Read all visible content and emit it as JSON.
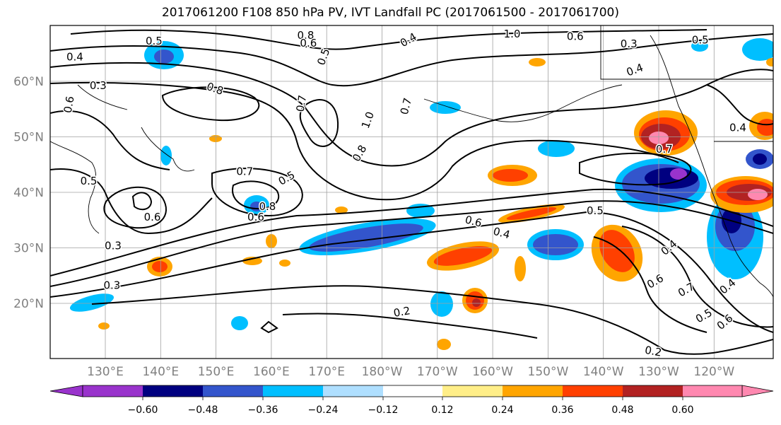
{
  "title": "2017061200 F108 850 hPa PV, IVT Landfall PC (2017061500 - 2017061700)",
  "map": {
    "lon_labels": [
      "130°E",
      "140°E",
      "150°E",
      "160°E",
      "170°E",
      "180°W",
      "170°W",
      "160°W",
      "150°W",
      "140°W",
      "130°W",
      "120°W"
    ],
    "lat_labels": [
      "60°N",
      "50°N",
      "40°N",
      "30°N",
      "20°N"
    ],
    "contour_labels": [
      {
        "text": "0.5",
        "lon": 138.8,
        "lat": 67.2,
        "rot": 0
      },
      {
        "text": "0.4",
        "lon": 124.5,
        "lat": 64.3,
        "rot": 0
      },
      {
        "text": "0.8",
        "lon": 166.2,
        "lat": 68.2,
        "rot": 0
      },
      {
        "text": "0.6",
        "lon": 166.7,
        "lat": 66.8,
        "rot": 0
      },
      {
        "text": "0.5",
        "lon": 169.5,
        "lat": 64.4,
        "rot": -70
      },
      {
        "text": "0.4",
        "lon": 184.8,
        "lat": 67.4,
        "rot": -30
      },
      {
        "text": "1.0",
        "lon": 203.5,
        "lat": 68.5,
        "rot": 0
      },
      {
        "text": "0.6",
        "lon": 214.9,
        "lat": 68.0,
        "rot": 0
      },
      {
        "text": "0.3",
        "lon": 224.6,
        "lat": 66.7,
        "rot": 0
      },
      {
        "text": "0.4",
        "lon": 225.7,
        "lat": 62.0,
        "rot": -20
      },
      {
        "text": "0.5",
        "lon": 237.5,
        "lat": 67.4,
        "rot": 0
      },
      {
        "text": "0.3",
        "lon": 128.7,
        "lat": 59.2,
        "rot": 0
      },
      {
        "text": "0.8",
        "lon": 149.8,
        "lat": 58.6,
        "rot": 20
      },
      {
        "text": "0.6",
        "lon": 123.5,
        "lat": 55.8,
        "rot": -80
      },
      {
        "text": "0.7",
        "lon": 165.5,
        "lat": 56.0,
        "rot": -80
      },
      {
        "text": "1.0",
        "lon": 177.5,
        "lat": 53.0,
        "rot": -70
      },
      {
        "text": "0.7",
        "lon": 184.4,
        "lat": 55.5,
        "rot": -75
      },
      {
        "text": "0.8",
        "lon": 176.0,
        "lat": 47.0,
        "rot": -60
      },
      {
        "text": "0.7",
        "lon": 231.0,
        "lat": 47.7,
        "rot": 0
      },
      {
        "text": "0.4",
        "lon": 244.3,
        "lat": 51.6,
        "rot": 0
      },
      {
        "text": "0.5",
        "lon": 127.0,
        "lat": 42.0,
        "rot": 0
      },
      {
        "text": "0.7",
        "lon": 155.2,
        "lat": 43.7,
        "rot": 0
      },
      {
        "text": "0.5",
        "lon": 162.8,
        "lat": 42.5,
        "rot": -30
      },
      {
        "text": "0.8",
        "lon": 159.3,
        "lat": 37.4,
        "rot": 0
      },
      {
        "text": "0.6",
        "lon": 157.2,
        "lat": 35.5,
        "rot": 0
      },
      {
        "text": "0.6",
        "lon": 138.5,
        "lat": 35.5,
        "rot": 0
      },
      {
        "text": "0.3",
        "lon": 131.4,
        "lat": 30.3,
        "rot": 0
      },
      {
        "text": "0.3",
        "lon": 131.2,
        "lat": 23.2,
        "rot": 0
      },
      {
        "text": "0.6",
        "lon": 196.5,
        "lat": 34.7,
        "rot": 15
      },
      {
        "text": "0.4",
        "lon": 201.6,
        "lat": 32.6,
        "rot": 15
      },
      {
        "text": "0.5",
        "lon": 218.5,
        "lat": 36.6,
        "rot": 0
      },
      {
        "text": "0.4",
        "lon": 231.9,
        "lat": 30.0,
        "rot": -40
      },
      {
        "text": "0.6",
        "lon": 229.4,
        "lat": 23.9,
        "rot": -30
      },
      {
        "text": "0.7",
        "lon": 235.0,
        "lat": 22.4,
        "rot": -30
      },
      {
        "text": "0.4",
        "lon": 242.5,
        "lat": 23.0,
        "rot": -40
      },
      {
        "text": "0.2",
        "lon": 183.6,
        "lat": 18.4,
        "rot": -10
      },
      {
        "text": "0.5",
        "lon": 238.2,
        "lat": 17.7,
        "rot": -30
      },
      {
        "text": "0.6",
        "lon": 242.0,
        "lat": 16.6,
        "rot": -40
      },
      {
        "text": "0.2",
        "lon": 229.0,
        "lat": 11.3,
        "rot": 10
      }
    ]
  },
  "colorbar": {
    "colors": [
      "#9933CC",
      "#000080",
      "#3355CC",
      "#00BFFF",
      "#AFDFFF",
      "#FFFFFF",
      "#FFEE88",
      "#FFA500",
      "#FF4000",
      "#B22222",
      "#FF88B0"
    ],
    "tick_labels": [
      "−0.60",
      "−0.48",
      "−0.36",
      "−0.24",
      "−0.12",
      "0.12",
      "0.24",
      "0.36",
      "0.48",
      "0.60"
    ]
  }
}
